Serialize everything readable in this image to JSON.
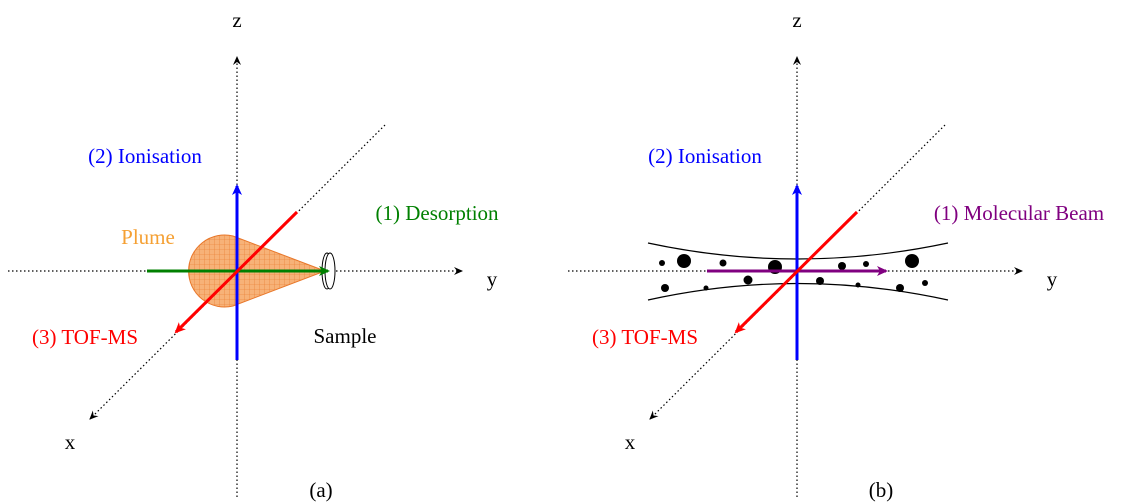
{
  "panels": [
    {
      "z_label": "z",
      "y_label": "y",
      "x_label": "x",
      "ionisation": "(2) Ionisation",
      "source": "(1) Desorption",
      "detector": "(3) TOF-MS",
      "plume": "Plume",
      "sample": "Sample",
      "caption": "(a)"
    },
    {
      "z_label": "z",
      "y_label": "y",
      "x_label": "x",
      "ionisation": "(2) Ionisation",
      "source": "(1) Molecular Beam",
      "detector": "(3) TOF-MS",
      "caption": "(b)"
    }
  ]
}
